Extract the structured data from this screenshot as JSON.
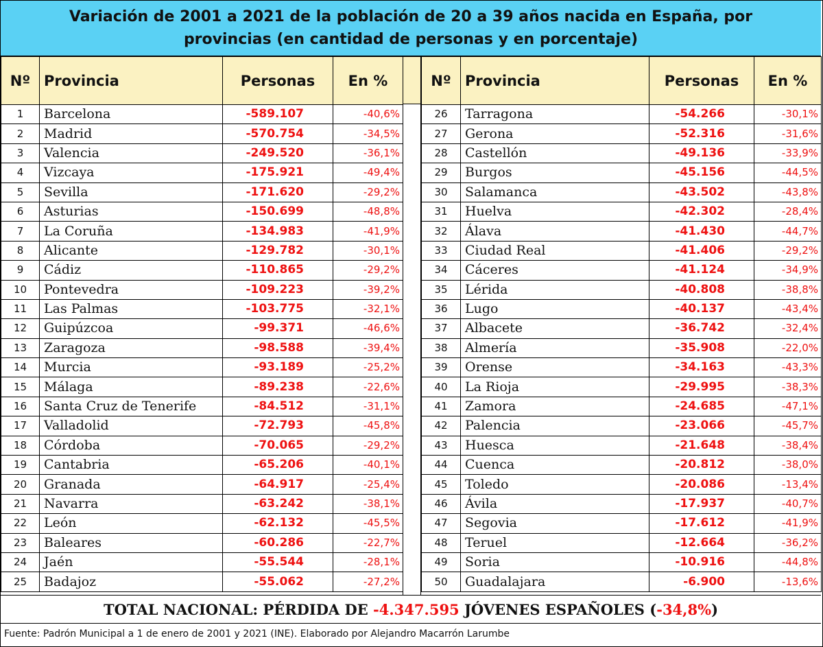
{
  "chart_data": {
    "type": "table",
    "title": "Variación de 2001 a 2021 de la población de 20 a 39 años nacida en España, por provincias (en cantidad de personas y en porcentaje)",
    "title_line1": "Variación de 2001 a 2021 de la población de 20 a 39 años nacida en España, por",
    "title_line2": "provincias (en cantidad de personas y en porcentaje)",
    "columns": {
      "n": "Nº",
      "province": "Provincia",
      "persons": "Personas",
      "percent": "En %"
    },
    "rows_left": [
      {
        "n": "1",
        "province": "Barcelona",
        "persons": "-589.107",
        "percent": "-40,6%"
      },
      {
        "n": "2",
        "province": "Madrid",
        "persons": "-570.754",
        "percent": "-34,5%"
      },
      {
        "n": "3",
        "province": "Valencia",
        "persons": "-249.520",
        "percent": "-36,1%"
      },
      {
        "n": "4",
        "province": "Vizcaya",
        "persons": "-175.921",
        "percent": "-49,4%"
      },
      {
        "n": "5",
        "province": "Sevilla",
        "persons": "-171.620",
        "percent": "-29,2%"
      },
      {
        "n": "6",
        "province": "Asturias",
        "persons": "-150.699",
        "percent": "-48,8%"
      },
      {
        "n": "7",
        "province": "La Coruña",
        "persons": "-134.983",
        "percent": "-41,9%"
      },
      {
        "n": "8",
        "province": "Alicante",
        "persons": "-129.782",
        "percent": "-30,1%"
      },
      {
        "n": "9",
        "province": "Cádiz",
        "persons": "-110.865",
        "percent": "-29,2%"
      },
      {
        "n": "10",
        "province": "Pontevedra",
        "persons": "-109.223",
        "percent": "-39,2%"
      },
      {
        "n": "11",
        "province": "Las Palmas",
        "persons": "-103.775",
        "percent": "-32,1%"
      },
      {
        "n": "12",
        "province": "Guipúzcoa",
        "persons": "-99.371",
        "percent": "-46,6%"
      },
      {
        "n": "13",
        "province": "Zaragoza",
        "persons": "-98.588",
        "percent": "-39,4%"
      },
      {
        "n": "14",
        "province": "Murcia",
        "persons": "-93.189",
        "percent": "-25,2%"
      },
      {
        "n": "15",
        "province": "Málaga",
        "persons": "-89.238",
        "percent": "-22,6%"
      },
      {
        "n": "16",
        "province": "Santa Cruz de Tenerife",
        "persons": "-84.512",
        "percent": "-31,1%"
      },
      {
        "n": "17",
        "province": "Valladolid",
        "persons": "-72.793",
        "percent": "-45,8%"
      },
      {
        "n": "18",
        "province": "Córdoba",
        "persons": "-70.065",
        "percent": "-29,2%"
      },
      {
        "n": "19",
        "province": "Cantabria",
        "persons": "-65.206",
        "percent": "-40,1%"
      },
      {
        "n": "20",
        "province": "Granada",
        "persons": "-64.917",
        "percent": "-25,4%"
      },
      {
        "n": "21",
        "province": "Navarra",
        "persons": "-63.242",
        "percent": "-38,1%"
      },
      {
        "n": "22",
        "province": "León",
        "persons": "-62.132",
        "percent": "-45,5%"
      },
      {
        "n": "23",
        "province": "Baleares",
        "persons": "-60.286",
        "percent": "-22,7%"
      },
      {
        "n": "24",
        "province": "Jaén",
        "persons": "-55.544",
        "percent": "-28,1%"
      },
      {
        "n": "25",
        "province": "Badajoz",
        "persons": "-55.062",
        "percent": "-27,2%"
      }
    ],
    "rows_right": [
      {
        "n": "26",
        "province": "Tarragona",
        "persons": "-54.266",
        "percent": "-30,1%"
      },
      {
        "n": "27",
        "province": "Gerona",
        "persons": "-52.316",
        "percent": "-31,6%"
      },
      {
        "n": "28",
        "province": "Castellón",
        "persons": "-49.136",
        "percent": "-33,9%"
      },
      {
        "n": "29",
        "province": "Burgos",
        "persons": "-45.156",
        "percent": "-44,5%"
      },
      {
        "n": "30",
        "province": "Salamanca",
        "persons": "-43.502",
        "percent": "-43,8%"
      },
      {
        "n": "31",
        "province": "Huelva",
        "persons": "-42.302",
        "percent": "-28,4%"
      },
      {
        "n": "32",
        "province": "Álava",
        "persons": "-41.430",
        "percent": "-44,7%"
      },
      {
        "n": "33",
        "province": "Ciudad Real",
        "persons": "-41.406",
        "percent": "-29,2%"
      },
      {
        "n": "34",
        "province": "Cáceres",
        "persons": "-41.124",
        "percent": "-34,9%"
      },
      {
        "n": "35",
        "province": "Lérida",
        "persons": "-40.808",
        "percent": "-38,8%"
      },
      {
        "n": "36",
        "province": "Lugo",
        "persons": "-40.137",
        "percent": "-43,4%"
      },
      {
        "n": "37",
        "province": "Albacete",
        "persons": "-36.742",
        "percent": "-32,4%"
      },
      {
        "n": "38",
        "province": "Almería",
        "persons": "-35.908",
        "percent": "-22,0%"
      },
      {
        "n": "39",
        "province": "Orense",
        "persons": "-34.163",
        "percent": "-43,3%"
      },
      {
        "n": "40",
        "province": "La Rioja",
        "persons": "-29.995",
        "percent": "-38,3%"
      },
      {
        "n": "41",
        "province": "Zamora",
        "persons": "-24.685",
        "percent": "-47,1%"
      },
      {
        "n": "42",
        "province": "Palencia",
        "persons": "-23.066",
        "percent": "-45,7%"
      },
      {
        "n": "43",
        "province": "Huesca",
        "persons": "-21.648",
        "percent": "-38,4%"
      },
      {
        "n": "44",
        "province": "Cuenca",
        "persons": "-20.812",
        "percent": "-38,0%"
      },
      {
        "n": "45",
        "province": "Toledo",
        "persons": "-20.086",
        "percent": "-13,4%"
      },
      {
        "n": "46",
        "province": "Ávila",
        "persons": "-17.937",
        "percent": "-40,7%"
      },
      {
        "n": "47",
        "province": "Segovia",
        "persons": "-17.612",
        "percent": "-41,9%"
      },
      {
        "n": "48",
        "province": "Teruel",
        "persons": "-12.664",
        "percent": "-36,2%"
      },
      {
        "n": "49",
        "province": "Soria",
        "persons": "-10.916",
        "percent": "-44,8%"
      },
      {
        "n": "50",
        "province": "Guadalajara",
        "persons": "-6.900",
        "percent": "-13,6%"
      }
    ],
    "total": {
      "prefix": "TOTAL NACIONAL: PÉRDIDA DE ",
      "value": "-4.347.595",
      "middle": " JÓVENES ESPAÑOLES (",
      "percent": "-34,8%",
      "suffix": ")"
    },
    "source": "Fuente: Padrón Municipal a 1 de enero de 2001 y 2021 (INE). Elaborado por Alejandro Macarrón Larumbe"
  },
  "colors": {
    "title_bg": "#5ad1f4",
    "header_bg": "#fbf2c2",
    "value_red": "#ee1111"
  }
}
